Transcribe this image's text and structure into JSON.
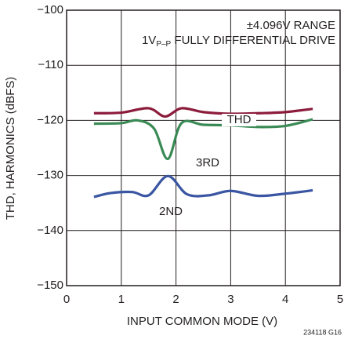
{
  "chart_data": {
    "type": "line",
    "xlabel": "INPUT COMMON MODE (V)",
    "ylabel": "THD, HARMONICS (dBFS)",
    "annotations": [
      "±4.096V RANGE",
      {
        "parts": [
          "1V",
          "P–P",
          " FULLY DIFFERENTIAL DRIVE"
        ]
      }
    ],
    "footnote": "234118 G16",
    "xlim": [
      0,
      5
    ],
    "xticks": [
      0,
      1,
      2,
      3,
      4,
      5
    ],
    "ylim": [
      -150,
      -100
    ],
    "yticks": [
      {
        "value": -150,
        "label": "−150"
      },
      {
        "value": -140,
        "label": "−140"
      },
      {
        "value": -130,
        "label": "−130"
      },
      {
        "value": -120,
        "label": "−120"
      },
      {
        "value": -110,
        "label": "−110"
      },
      {
        "value": -100,
        "label": "−100"
      }
    ],
    "grid": true,
    "series": [
      {
        "name": "THD",
        "color": "#8c1c3c",
        "x": [
          0.5,
          1,
          1.5,
          1.8,
          2.1,
          2.5,
          3,
          3.5,
          4,
          4.5
        ],
        "values": [
          -118.7,
          -118.6,
          -117.8,
          -119.3,
          -117.8,
          -118.5,
          -118.8,
          -118.7,
          -118.5,
          -117.9
        ]
      },
      {
        "name": "3RD",
        "color": "#3a8a55",
        "x": [
          0.5,
          1,
          1.3,
          1.6,
          1.85,
          2.1,
          2.5,
          3,
          3.5,
          4,
          4.5
        ],
        "values": [
          -120.6,
          -120.5,
          -120.0,
          -121.5,
          -127.0,
          -120.5,
          -120.8,
          -120.9,
          -121.2,
          -121.0,
          -119.8
        ]
      },
      {
        "name": "2ND",
        "color": "#3a56a2",
        "x": [
          0.5,
          0.8,
          1.2,
          1.5,
          1.85,
          2.2,
          2.6,
          3,
          3.5,
          4,
          4.5
        ],
        "values": [
          -133.9,
          -133.2,
          -133.0,
          -133.6,
          -130.1,
          -133.4,
          -133.6,
          -132.8,
          -133.7,
          -133.3,
          -132.7
        ]
      }
    ]
  }
}
